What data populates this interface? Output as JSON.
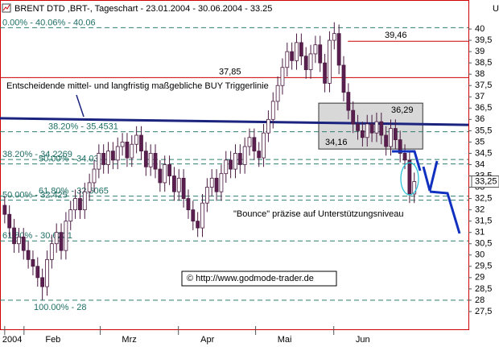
{
  "header": {
    "title": "BRENT DTD ,BRT-, Tageschart - 23.01.2004 - 30.06.2004 - 33.25",
    "corner": "U"
  },
  "chart_data": {
    "type": "candlestick",
    "open": [
      32.2,
      31.8,
      31.2,
      30.5,
      30.8,
      30.2,
      29.8,
      29.5,
      29.0,
      28.6,
      29.8,
      30.5,
      31.0,
      30.2,
      31.5,
      32.0,
      32.5,
      32.0,
      32.8,
      33.2,
      33.8,
      34.5,
      34.0,
      34.6,
      34.2,
      34.8,
      35.0,
      34.3,
      34.9,
      35.3,
      34.6,
      33.9,
      34.5,
      33.8,
      33.2,
      34.0,
      33.5,
      32.8,
      33.4,
      32.5,
      32.0,
      31.5,
      31.2,
      32.3,
      33.0,
      33.4,
      32.8,
      33.6,
      34.2,
      33.8,
      34.5,
      34.0,
      34.8,
      35.2,
      34.6,
      34.3,
      35.4,
      36.0,
      36.8,
      37.5,
      38.3,
      39.0,
      38.6,
      39.4,
      38.8,
      38.2,
      38.9,
      39.3,
      38.5,
      37.6,
      39.5,
      39.8,
      38.4,
      37.2,
      36.4,
      35.8,
      35.5,
      35.2,
      35.8,
      35.4,
      35.9,
      35.3,
      34.8,
      35.6,
      35.1,
      34.5,
      34.2,
      32.7
    ],
    "high": [
      32.6,
      32.2,
      31.6,
      31.2,
      31.2,
      30.6,
      30.2,
      29.9,
      29.4,
      30.2,
      30.9,
      31.4,
      31.4,
      31.9,
      32.4,
      32.9,
      32.9,
      33.2,
      33.6,
      34.2,
      34.9,
      34.9,
      35.0,
      35.0,
      35.2,
      35.4,
      35.4,
      35.3,
      35.7,
      35.7,
      35.0,
      34.9,
      34.9,
      34.2,
      34.4,
      34.4,
      33.9,
      33.8,
      33.8,
      32.9,
      32.4,
      31.9,
      32.7,
      33.4,
      33.8,
      33.8,
      34.0,
      34.6,
      34.6,
      34.9,
      34.9,
      35.2,
      35.6,
      35.6,
      35.0,
      35.8,
      36.4,
      37.2,
      37.9,
      38.7,
      39.4,
      39.4,
      39.8,
      39.8,
      39.2,
      39.3,
      39.7,
      39.7,
      38.9,
      39.9,
      40.3,
      40.2,
      38.8,
      37.6,
      36.8,
      36.2,
      35.9,
      36.2,
      36.2,
      36.3,
      36.3,
      35.7,
      36.0,
      36.0,
      35.5,
      34.9,
      34.6,
      33.65
    ],
    "low": [
      31.4,
      30.8,
      30.1,
      30.1,
      29.8,
      29.4,
      29.1,
      28.6,
      28.0,
      28.2,
      29.4,
      30.1,
      29.8,
      29.8,
      31.1,
      31.6,
      31.6,
      31.6,
      32.4,
      32.8,
      33.4,
      33.6,
      33.6,
      33.8,
      33.8,
      34.4,
      33.9,
      33.9,
      34.5,
      34.2,
      33.5,
      33.5,
      33.4,
      32.8,
      32.8,
      33.1,
      32.4,
      32.4,
      32.1,
      31.6,
      31.1,
      30.8,
      30.8,
      31.9,
      32.6,
      32.4,
      32.4,
      33.2,
      33.4,
      33.4,
      33.6,
      33.6,
      34.4,
      34.2,
      33.9,
      33.9,
      35.0,
      35.6,
      36.4,
      37.1,
      37.9,
      38.2,
      38.2,
      38.4,
      37.8,
      37.8,
      38.5,
      38.1,
      37.2,
      37.2,
      39.1,
      38.0,
      36.8,
      36.0,
      35.4,
      35.1,
      34.8,
      34.8,
      35.0,
      35.0,
      34.9,
      34.4,
      34.4,
      34.7,
      34.1,
      33.8,
      32.3,
      32.3
    ],
    "close": [
      31.8,
      31.2,
      30.5,
      30.8,
      30.2,
      29.8,
      29.5,
      29.0,
      28.6,
      29.8,
      30.5,
      31.0,
      30.2,
      31.5,
      32.0,
      32.5,
      32.0,
      32.8,
      33.2,
      33.8,
      34.5,
      34.0,
      34.6,
      34.2,
      34.8,
      35.0,
      34.3,
      34.9,
      35.3,
      34.6,
      33.9,
      34.5,
      33.8,
      33.2,
      34.0,
      33.5,
      32.8,
      33.4,
      32.5,
      32.0,
      31.5,
      31.2,
      32.3,
      33.0,
      33.4,
      32.8,
      33.6,
      34.2,
      33.8,
      34.5,
      34.0,
      34.8,
      35.2,
      34.6,
      34.3,
      35.4,
      36.0,
      36.8,
      37.5,
      38.3,
      39.0,
      38.6,
      39.4,
      38.8,
      38.2,
      38.9,
      39.3,
      38.5,
      37.6,
      39.5,
      39.8,
      38.4,
      37.2,
      36.4,
      35.8,
      35.5,
      35.2,
      35.8,
      35.4,
      35.9,
      35.3,
      34.8,
      35.6,
      35.1,
      34.5,
      34.2,
      32.7,
      33.25
    ],
    "up_color": "#ffffff",
    "down_color": "#5a1f4f",
    "ylim": [
      26.75,
      40.5
    ],
    "yticks": [
      {
        "value": 27.5,
        "label": "27,5"
      },
      28,
      {
        "value": 28.5,
        "label": "28,5"
      },
      29,
      {
        "value": 29.5,
        "label": "29,5"
      },
      30,
      {
        "value": 30.5,
        "label": "30,5"
      },
      31,
      {
        "value": 31.5,
        "label": "31,5"
      },
      32,
      {
        "value": 32.5,
        "label": "32,5"
      },
      33,
      {
        "value": 33.5,
        "label": "33,5"
      },
      34,
      {
        "value": 34.5,
        "label": "34,5"
      },
      35,
      {
        "value": 35.5,
        "label": "35,5"
      },
      36,
      {
        "value": 36.5,
        "label": "36,5"
      },
      37,
      {
        "value": 37.5,
        "label": "37,5"
      },
      38,
      {
        "value": 38.5,
        "label": "38,5"
      },
      39,
      {
        "value": 39.5,
        "label": "39,5"
      },
      40
    ],
    "xlim": [
      -1,
      98.5
    ],
    "xticks": [
      {
        "value": 0,
        "label": "2004"
      },
      {
        "value": 4.1,
        "label": "Feb"
      },
      {
        "value": 20.3,
        "label": "Mrz"
      },
      {
        "value": 36.9,
        "label": "Apr"
      },
      {
        "value": 53.3,
        "label": "Mai"
      },
      {
        "value": 69.9,
        "label": "Jun"
      }
    ],
    "levels": [
      {
        "value": 40.06,
        "label": "0.00% - 40.06% - 40.06"
      },
      {
        "value": 35.4531,
        "label": "38.20% - 35.4531"
      },
      {
        "value": 34.2269,
        "label": "38.20% - 34.2269"
      },
      {
        "value": 34.03,
        "label": "50.00% - 34.03"
      },
      {
        "value": 32.6065,
        "label": "61.80% - 32.6065"
      },
      {
        "value": 32.425,
        "label": "50.00% - 32.425"
      },
      {
        "value": 30.6231,
        "label": "61.80% - 30.6231"
      },
      {
        "value": 28,
        "label": "100.00% - 28"
      }
    ],
    "level_color": "#2e7d6e",
    "resistance": [
      {
        "value": 39.46,
        "label": "39,46",
        "start": 72.9
      },
      {
        "value": 37.85,
        "label": "37,85",
        "start": -1
      }
    ],
    "resistance_color": "#cc0000",
    "box": {
      "ylim": [
        34.69,
        36.72
      ],
      "xlim": [
        66.7,
        88.8
      ],
      "labels": [
        "36,29",
        "34,16"
      ]
    },
    "trendline": {
      "label": "Entscheidende mittel- und langfristig maßgebliche BUY Triggerlinie",
      "values": [
        36.05,
        35.76
      ],
      "color": "#1a237e"
    },
    "last": {
      "value": 33.25,
      "label": "33,25"
    },
    "annotation": "\"Bounce\" präzise auf Unterstützungsniveau",
    "source": "© http://www.godmode-trader.de"
  }
}
